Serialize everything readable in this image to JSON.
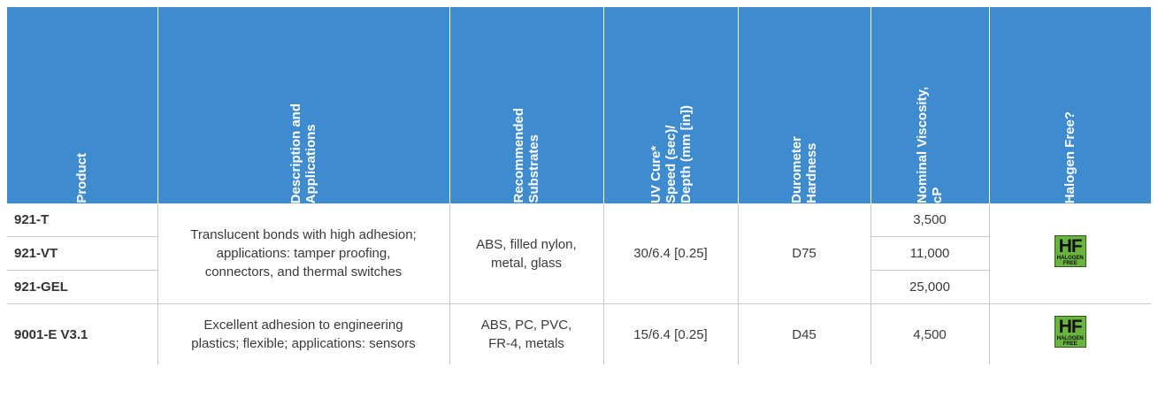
{
  "table": {
    "headers": [
      "Product",
      "Description and\nApplications",
      "Recommended\nSubstrates",
      "UV Cure*\nSpeed (sec)/\nDepth (mm [in])",
      "Durometer\nHardness",
      "Nominal Viscosity,\ncP",
      "Halogen Free?"
    ],
    "group1": {
      "products": [
        "921-T",
        "921-VT",
        "921-GEL"
      ],
      "description": "Translucent bonds with high adhesion; applications: tamper proofing, connectors, and thermal switches",
      "substrates": "ABS, filled nylon, metal, glass",
      "uv_cure": "30/6.4 [0.25]",
      "hardness": "D75",
      "viscosities": [
        "3,500",
        "11,000",
        "25,000"
      ],
      "badge": {
        "icon": "halogen-free-badge-icon",
        "hf": "HF",
        "text": "HALOGEN FREE"
      }
    },
    "group2": {
      "product": "9001-E V3.1",
      "description": "Excellent adhesion to engineering plastics; flexible; applications: sensors",
      "substrates": "ABS, PC, PVC, FR-4, metals",
      "uv_cure": "15/6.4 [0.25]",
      "hardness": "D45",
      "viscosity": "4,500",
      "badge": {
        "icon": "halogen-free-badge-icon",
        "hf": "HF",
        "text": "HALOGEN FREE"
      }
    }
  },
  "colors": {
    "header_bg": "#3f8bd0",
    "badge_green": "#6ab33f"
  }
}
